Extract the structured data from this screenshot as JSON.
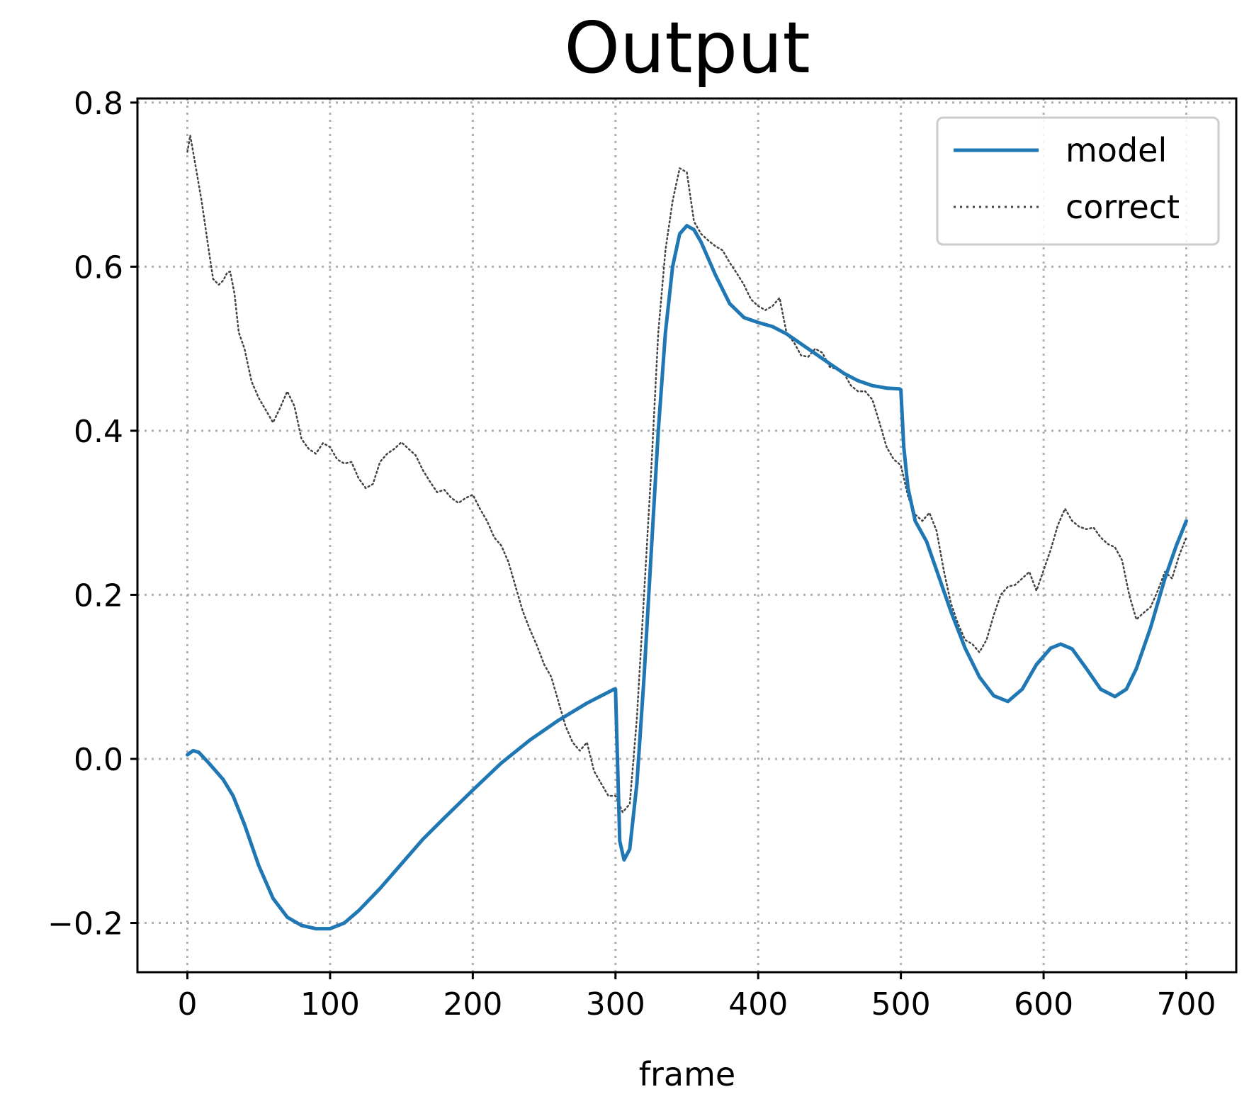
{
  "chart_data": {
    "type": "line",
    "title": "Output",
    "xlabel": "frame",
    "ylabel": "",
    "xlim": [
      -35,
      735
    ],
    "ylim": [
      -0.26,
      0.805
    ],
    "xticks": [
      0,
      100,
      200,
      300,
      400,
      500,
      600,
      700
    ],
    "yticks": [
      -0.2,
      0.0,
      0.2,
      0.4,
      0.6,
      0.8
    ],
    "xtick_labels": [
      "0",
      "100",
      "200",
      "300",
      "400",
      "500",
      "600",
      "700"
    ],
    "ytick_labels": [
      "−0.2",
      "0.0",
      "0.2",
      "0.4",
      "0.6",
      "0.8"
    ],
    "grid": true,
    "legend_position": "top-right",
    "series": [
      {
        "name": "model",
        "color": "#1f77b4",
        "style": "solid",
        "points": [
          [
            0,
            0.005
          ],
          [
            4,
            0.01
          ],
          [
            8,
            0.008
          ],
          [
            15,
            -0.005
          ],
          [
            25,
            -0.025
          ],
          [
            32,
            -0.045
          ],
          [
            40,
            -0.08
          ],
          [
            50,
            -0.13
          ],
          [
            60,
            -0.17
          ],
          [
            70,
            -0.193
          ],
          [
            80,
            -0.203
          ],
          [
            90,
            -0.207
          ],
          [
            100,
            -0.207
          ],
          [
            110,
            -0.2
          ],
          [
            120,
            -0.185
          ],
          [
            135,
            -0.158
          ],
          [
            150,
            -0.128
          ],
          [
            165,
            -0.098
          ],
          [
            180,
            -0.072
          ],
          [
            200,
            -0.038
          ],
          [
            220,
            -0.005
          ],
          [
            240,
            0.023
          ],
          [
            260,
            0.047
          ],
          [
            280,
            0.068
          ],
          [
            299,
            0.085
          ],
          [
            300,
            0.085
          ],
          [
            303,
            -0.1
          ],
          [
            306,
            -0.123
          ],
          [
            310,
            -0.11
          ],
          [
            315,
            -0.03
          ],
          [
            320,
            0.1
          ],
          [
            325,
            0.25
          ],
          [
            330,
            0.4
          ],
          [
            335,
            0.52
          ],
          [
            340,
            0.6
          ],
          [
            345,
            0.64
          ],
          [
            350,
            0.65
          ],
          [
            355,
            0.645
          ],
          [
            360,
            0.63
          ],
          [
            370,
            0.59
          ],
          [
            380,
            0.555
          ],
          [
            390,
            0.538
          ],
          [
            400,
            0.532
          ],
          [
            410,
            0.527
          ],
          [
            420,
            0.518
          ],
          [
            430,
            0.506
          ],
          [
            440,
            0.494
          ],
          [
            450,
            0.482
          ],
          [
            460,
            0.47
          ],
          [
            470,
            0.461
          ],
          [
            480,
            0.455
          ],
          [
            490,
            0.452
          ],
          [
            499,
            0.451
          ],
          [
            500,
            0.45
          ],
          [
            502,
            0.38
          ],
          [
            505,
            0.33
          ],
          [
            510,
            0.29
          ],
          [
            518,
            0.265
          ],
          [
            525,
            0.23
          ],
          [
            535,
            0.18
          ],
          [
            545,
            0.135
          ],
          [
            555,
            0.1
          ],
          [
            565,
            0.077
          ],
          [
            575,
            0.07
          ],
          [
            585,
            0.085
          ],
          [
            595,
            0.115
          ],
          [
            605,
            0.135
          ],
          [
            612,
            0.14
          ],
          [
            620,
            0.134
          ],
          [
            630,
            0.11
          ],
          [
            640,
            0.085
          ],
          [
            650,
            0.076
          ],
          [
            658,
            0.085
          ],
          [
            665,
            0.11
          ],
          [
            675,
            0.16
          ],
          [
            685,
            0.22
          ],
          [
            693,
            0.26
          ],
          [
            700,
            0.29
          ]
        ]
      },
      {
        "name": "correct",
        "color": "#444444",
        "style": "dotted",
        "points": [
          [
            0,
            0.74
          ],
          [
            2,
            0.76
          ],
          [
            5,
            0.73
          ],
          [
            10,
            0.68
          ],
          [
            15,
            0.62
          ],
          [
            18,
            0.585
          ],
          [
            22,
            0.578
          ],
          [
            25,
            0.583
          ],
          [
            28,
            0.593
          ],
          [
            30,
            0.594
          ],
          [
            33,
            0.567
          ],
          [
            36,
            0.52
          ],
          [
            40,
            0.5
          ],
          [
            45,
            0.46
          ],
          [
            50,
            0.44
          ],
          [
            55,
            0.425
          ],
          [
            60,
            0.41
          ],
          [
            65,
            0.428
          ],
          [
            70,
            0.448
          ],
          [
            75,
            0.43
          ],
          [
            80,
            0.39
          ],
          [
            85,
            0.378
          ],
          [
            90,
            0.372
          ],
          [
            95,
            0.385
          ],
          [
            100,
            0.38
          ],
          [
            105,
            0.365
          ],
          [
            110,
            0.36
          ],
          [
            115,
            0.362
          ],
          [
            120,
            0.342
          ],
          [
            125,
            0.33
          ],
          [
            130,
            0.335
          ],
          [
            135,
            0.362
          ],
          [
            140,
            0.372
          ],
          [
            145,
            0.378
          ],
          [
            150,
            0.386
          ],
          [
            155,
            0.378
          ],
          [
            160,
            0.37
          ],
          [
            165,
            0.352
          ],
          [
            170,
            0.338
          ],
          [
            175,
            0.325
          ],
          [
            180,
            0.328
          ],
          [
            185,
            0.318
          ],
          [
            190,
            0.312
          ],
          [
            195,
            0.318
          ],
          [
            200,
            0.322
          ],
          [
            205,
            0.305
          ],
          [
            210,
            0.29
          ],
          [
            215,
            0.27
          ],
          [
            220,
            0.26
          ],
          [
            225,
            0.24
          ],
          [
            230,
            0.21
          ],
          [
            235,
            0.18
          ],
          [
            240,
            0.158
          ],
          [
            245,
            0.138
          ],
          [
            250,
            0.115
          ],
          [
            255,
            0.1
          ],
          [
            260,
            0.07
          ],
          [
            265,
            0.04
          ],
          [
            270,
            0.02
          ],
          [
            275,
            0.01
          ],
          [
            280,
            0.02
          ],
          [
            285,
            -0.015
          ],
          [
            290,
            -0.03
          ],
          [
            295,
            -0.045
          ],
          [
            300,
            -0.045
          ],
          [
            305,
            -0.065
          ],
          [
            310,
            -0.055
          ],
          [
            315,
            0.05
          ],
          [
            320,
            0.2
          ],
          [
            325,
            0.35
          ],
          [
            330,
            0.52
          ],
          [
            335,
            0.62
          ],
          [
            340,
            0.68
          ],
          [
            345,
            0.72
          ],
          [
            350,
            0.715
          ],
          [
            355,
            0.655
          ],
          [
            360,
            0.64
          ],
          [
            365,
            0.632
          ],
          [
            370,
            0.625
          ],
          [
            375,
            0.62
          ],
          [
            380,
            0.605
          ],
          [
            385,
            0.592
          ],
          [
            390,
            0.578
          ],
          [
            395,
            0.56
          ],
          [
            400,
            0.552
          ],
          [
            405,
            0.547
          ],
          [
            410,
            0.552
          ],
          [
            415,
            0.562
          ],
          [
            420,
            0.518
          ],
          [
            425,
            0.508
          ],
          [
            430,
            0.492
          ],
          [
            435,
            0.49
          ],
          [
            440,
            0.5
          ],
          [
            445,
            0.495
          ],
          [
            450,
            0.478
          ],
          [
            455,
            0.475
          ],
          [
            460,
            0.47
          ],
          [
            465,
            0.455
          ],
          [
            470,
            0.448
          ],
          [
            475,
            0.448
          ],
          [
            480,
            0.438
          ],
          [
            485,
            0.41
          ],
          [
            490,
            0.38
          ],
          [
            495,
            0.365
          ],
          [
            500,
            0.358
          ],
          [
            505,
            0.32
          ],
          [
            510,
            0.298
          ],
          [
            515,
            0.29
          ],
          [
            520,
            0.3
          ],
          [
            525,
            0.278
          ],
          [
            530,
            0.23
          ],
          [
            535,
            0.19
          ],
          [
            540,
            0.165
          ],
          [
            545,
            0.145
          ],
          [
            550,
            0.14
          ],
          [
            555,
            0.13
          ],
          [
            560,
            0.145
          ],
          [
            565,
            0.175
          ],
          [
            570,
            0.2
          ],
          [
            575,
            0.21
          ],
          [
            580,
            0.212
          ],
          [
            585,
            0.22
          ],
          [
            590,
            0.228
          ],
          [
            595,
            0.205
          ],
          [
            600,
            0.23
          ],
          [
            605,
            0.255
          ],
          [
            610,
            0.285
          ],
          [
            615,
            0.305
          ],
          [
            620,
            0.29
          ],
          [
            625,
            0.283
          ],
          [
            630,
            0.28
          ],
          [
            635,
            0.282
          ],
          [
            640,
            0.27
          ],
          [
            645,
            0.262
          ],
          [
            650,
            0.258
          ],
          [
            655,
            0.242
          ],
          [
            660,
            0.2
          ],
          [
            665,
            0.17
          ],
          [
            670,
            0.178
          ],
          [
            675,
            0.185
          ],
          [
            680,
            0.205
          ],
          [
            685,
            0.228
          ],
          [
            690,
            0.22
          ],
          [
            695,
            0.248
          ],
          [
            700,
            0.27
          ]
        ]
      }
    ]
  }
}
